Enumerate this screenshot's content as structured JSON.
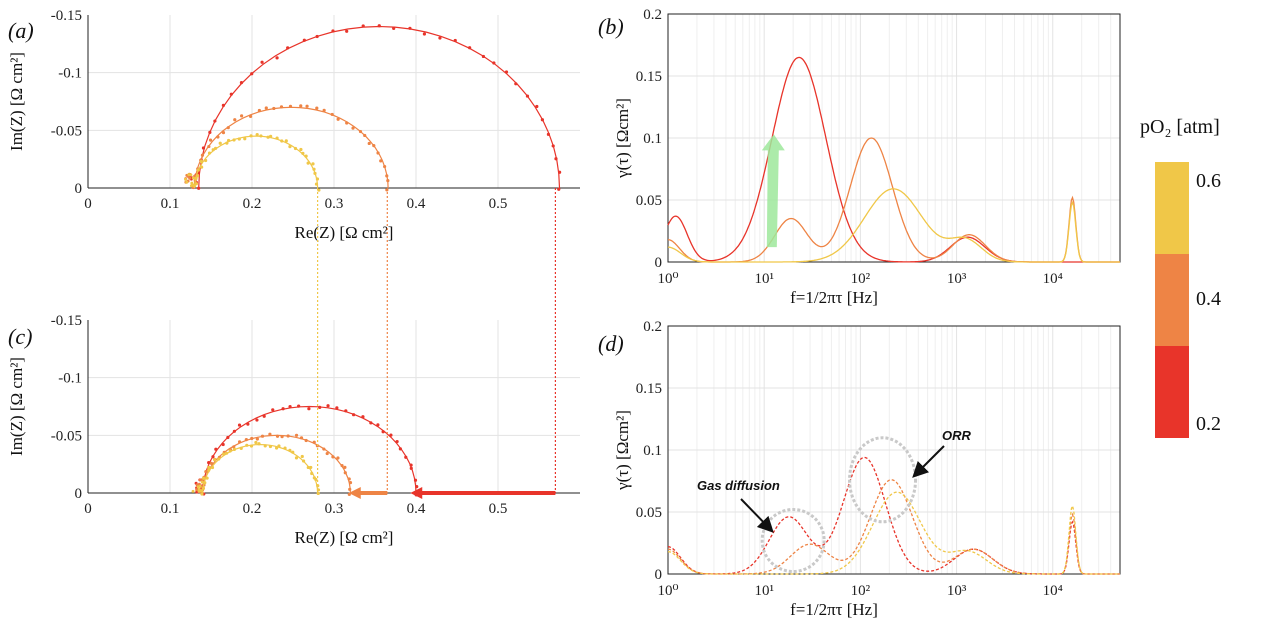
{
  "colors": {
    "p02": "#e8342a",
    "p04": "#ee8445",
    "p06": "#f0c748",
    "arrow_up": "#9ee89b"
  },
  "colorbar": {
    "title": "pO₂ [atm]",
    "ticks": [
      "0.6",
      "0.4",
      "0.2"
    ]
  },
  "annotations": {
    "gas": "Gas diffusion",
    "orr": "ORR"
  },
  "chart_data": [
    {
      "panel": "(a)",
      "type": "scatter",
      "xlabel": "Re(Z) [Ω cm²]",
      "ylabel": "Im(Z) [Ω cm²]",
      "xlim": [
        0,
        0.6
      ],
      "ylim": [
        -0.15,
        0
      ],
      "y_inverted": true,
      "grid": true,
      "xticks": [
        "0",
        "0.1",
        "0.2",
        "0.3",
        "0.4",
        "0.5"
      ],
      "yticks": [
        "0",
        "-0.05",
        "-0.1",
        "-0.15"
      ],
      "series": [
        {
          "pO2": "0.2",
          "color": "#e8342a",
          "center": 0.355,
          "radius": 0.22,
          "height": 0.14
        },
        {
          "pO2": "0.4",
          "color": "#ee8445",
          "center": 0.248,
          "radius": 0.118,
          "height": 0.07
        },
        {
          "pO2": "0.6",
          "color": "#f0c748",
          "center": 0.205,
          "radius": 0.075,
          "height": 0.045
        }
      ]
    },
    {
      "panel": "(b)",
      "type": "line",
      "xlabel": "f=1/2πτ [Hz]",
      "ylabel": "γ(τ) [Ωcm²]",
      "xscale": "log",
      "xlim": [
        1,
        50000
      ],
      "ylim": [
        0,
        0.2
      ],
      "grid": true,
      "xticks": [
        "10⁰",
        "10¹",
        "10²",
        "10³",
        "10⁴"
      ],
      "yticks": [
        "0",
        "0.05",
        "0.1",
        "0.15",
        "0.2"
      ],
      "series": [
        {
          "pO2": "0.2",
          "color": "#e8342a",
          "peaks": [
            [
              1.2,
              0.037,
              0.12
            ],
            [
              23,
              0.165,
              0.28
            ],
            [
              1300,
              0.02,
              0.18
            ]
          ]
        },
        {
          "pO2": "0.4",
          "color": "#ee8445",
          "peaks": [
            [
              1.0,
              0.018,
              0.12
            ],
            [
              19,
              0.035,
              0.17
            ],
            [
              130,
              0.1,
              0.22
            ],
            [
              1350,
              0.022,
              0.17
            ],
            [
              16000,
              0.052,
              0.035
            ]
          ]
        },
        {
          "pO2": "0.6",
          "color": "#f0c748",
          "peaks": [
            [
              1.0,
              0.012,
              0.13
            ],
            [
              220,
              0.059,
              0.3
            ],
            [
              1250,
              0.017,
              0.17
            ],
            [
              16000,
              0.048,
              0.035
            ]
          ]
        }
      ]
    },
    {
      "panel": "(c)",
      "type": "scatter",
      "xlabel": "Re(Z) [Ω cm²]",
      "ylabel": "Im(Z) [Ω cm²]",
      "xlim": [
        0,
        0.6
      ],
      "ylim": [
        -0.15,
        0
      ],
      "y_inverted": true,
      "grid": true,
      "xticks": [
        "0",
        "0.1",
        "0.2",
        "0.3",
        "0.4",
        "0.5"
      ],
      "yticks": [
        "0",
        "-0.05",
        "-0.1",
        "-0.15"
      ],
      "series": [
        {
          "pO2": "0.2",
          "color": "#e8342a",
          "center": 0.27,
          "radius": 0.13,
          "height": 0.075
        },
        {
          "pO2": "0.4",
          "color": "#ee8445",
          "center": 0.23,
          "radius": 0.09,
          "height": 0.05
        },
        {
          "pO2": "0.6",
          "color": "#f0c748",
          "center": 0.21,
          "radius": 0.07,
          "height": 0.042
        }
      ]
    },
    {
      "panel": "(d)",
      "type": "line",
      "xlabel": "f=1/2πτ [Hz]",
      "ylabel": "γ(τ) [Ωcm²]",
      "xscale": "log",
      "xlim": [
        1,
        50000
      ],
      "ylim": [
        0,
        0.2
      ],
      "grid": true,
      "xticks": [
        "10⁰",
        "10¹",
        "10²",
        "10³",
        "10⁴"
      ],
      "yticks": [
        "0",
        "0.05",
        "0.1",
        "0.15",
        "0.2"
      ],
      "series": [
        {
          "pO2": "0.2",
          "color": "#e8342a",
          "peaks": [
            [
              1.0,
              0.022,
              0.13
            ],
            [
              18,
              0.046,
              0.2
            ],
            [
              110,
              0.094,
              0.22
            ],
            [
              1500,
              0.02,
              0.2
            ],
            [
              16000,
              0.042,
              0.035
            ]
          ]
        },
        {
          "pO2": "0.4",
          "color": "#ee8445",
          "peaks": [
            [
              1.0,
              0.02,
              0.13
            ],
            [
              30,
              0.024,
              0.2
            ],
            [
              210,
              0.076,
              0.22
            ],
            [
              1500,
              0.02,
              0.2
            ],
            [
              16000,
              0.048,
              0.035
            ]
          ]
        },
        {
          "pO2": "0.6",
          "color": "#f0c748",
          "peaks": [
            [
              1.0,
              0.018,
              0.13
            ],
            [
              240,
              0.066,
              0.25
            ],
            [
              1300,
              0.018,
              0.2
            ],
            [
              16000,
              0.055,
              0.035
            ]
          ]
        }
      ]
    }
  ]
}
